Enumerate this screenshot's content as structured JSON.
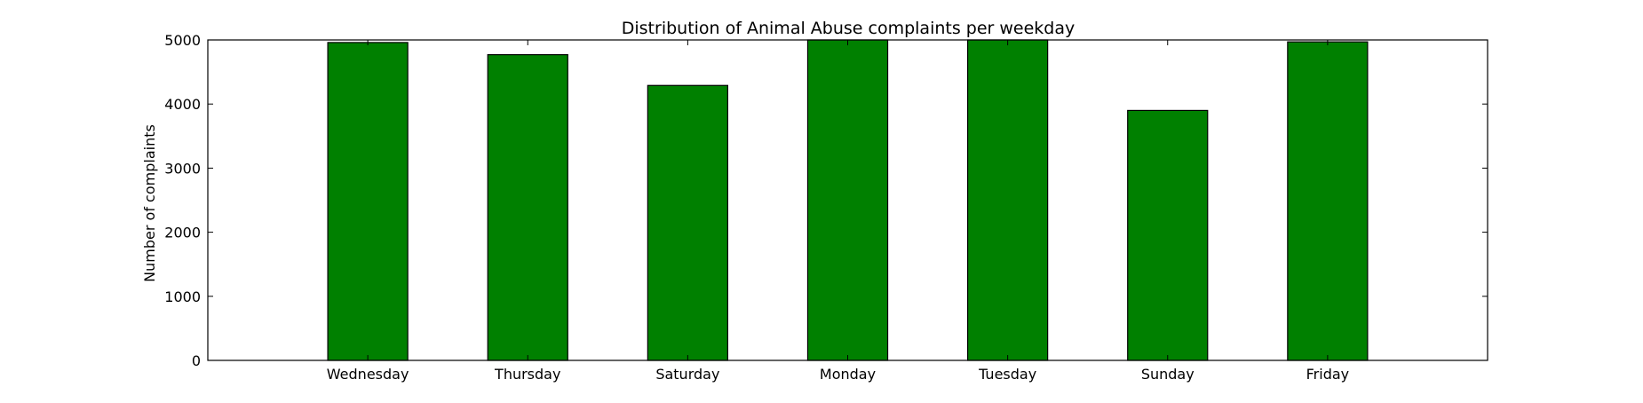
{
  "chart_data": {
    "type": "bar",
    "title": "Distribution of  Animal Abuse complaints per weekday",
    "xlabel": "",
    "ylabel": "Number of complaints",
    "categories": [
      "Wednesday",
      "Thursday",
      "Saturday",
      "Monday",
      "Tuesday",
      "Sunday",
      "Friday"
    ],
    "values": [
      4960,
      4770,
      4290,
      5000,
      5000,
      3900,
      4970
    ],
    "ylim": [
      0,
      5000
    ],
    "yticks": [
      0,
      1000,
      2000,
      3000,
      4000,
      5000
    ],
    "xlim": [
      -1,
      7
    ],
    "bar_width": 0.5,
    "grid": false,
    "bar_color": "#008000",
    "edge_color": "#000000"
  }
}
